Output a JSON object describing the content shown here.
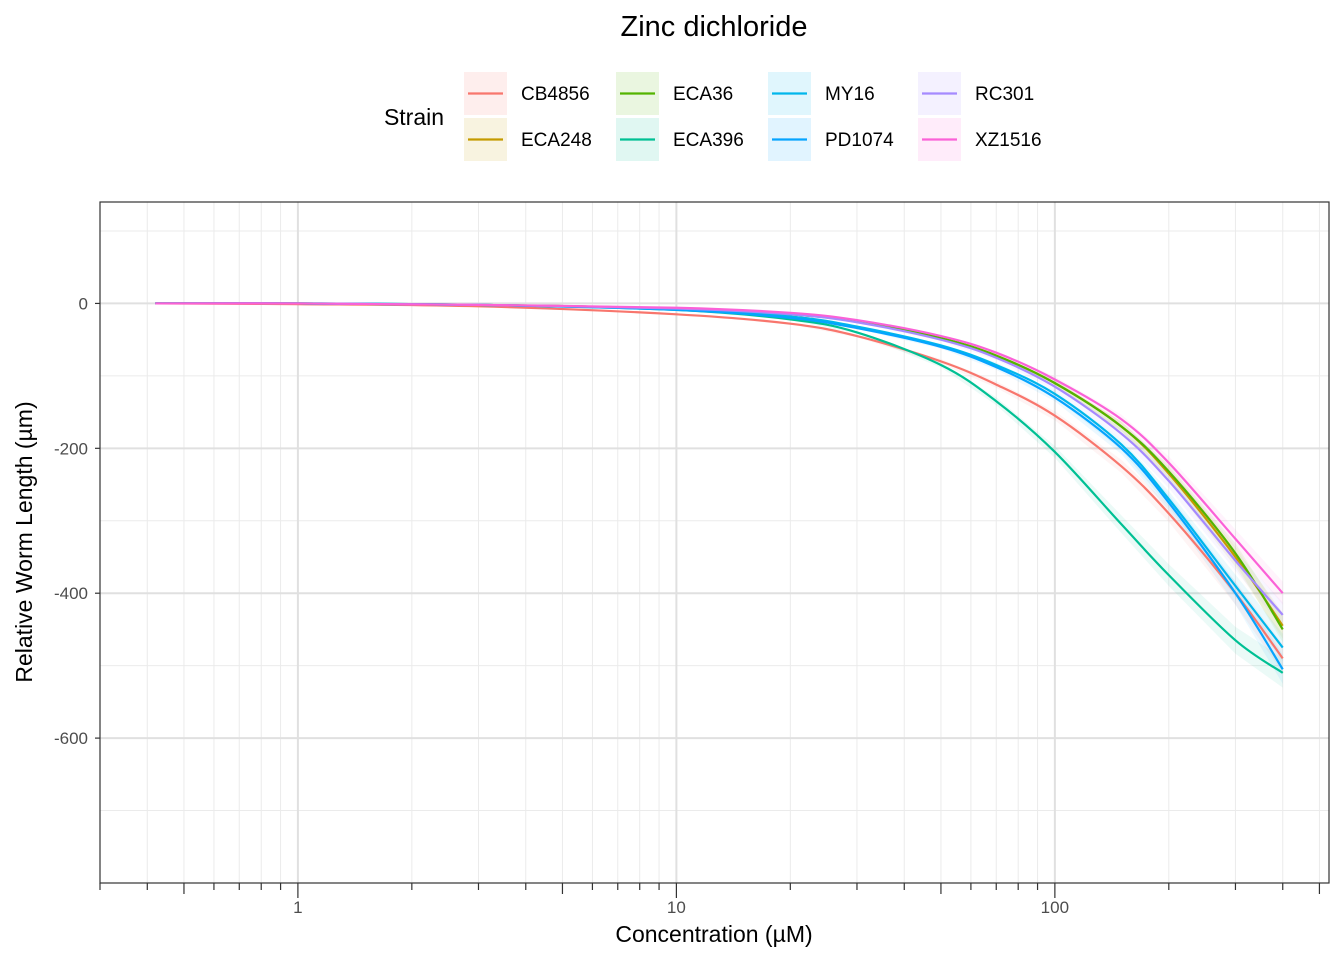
{
  "chart_data": {
    "type": "line",
    "title": "Zinc dichloride",
    "xlabel": "Concentration (µM)",
    "ylabel": "Relative Worm Length (µm)",
    "x_scale": "log10",
    "xlim": [
      0.3,
      530
    ],
    "ylim": [
      -800,
      140
    ],
    "x_ticks": [
      {
        "value": 1,
        "label": "1"
      },
      {
        "value": 10,
        "label": "10"
      },
      {
        "value": 100,
        "label": "100"
      }
    ],
    "y_ticks": [
      {
        "value": 0,
        "label": "0"
      },
      {
        "value": -200,
        "label": "-200"
      },
      {
        "value": -400,
        "label": "-400"
      },
      {
        "value": -600,
        "label": "-600"
      }
    ],
    "grid": true,
    "legend": {
      "title": "Strain",
      "position": "top"
    },
    "x": [
      0.42,
      1,
      3,
      10,
      20,
      30,
      50,
      70,
      100,
      150,
      200,
      300,
      400
    ],
    "series": [
      {
        "name": "CB4856",
        "color": "#F8766D",
        "values": [
          0,
          -1,
          -4,
          -15,
          -28,
          -45,
          -80,
          -112,
          -155,
          -225,
          -290,
          -400,
          -490
        ]
      },
      {
        "name": "ECA248",
        "color": "#C49A00",
        "values": [
          0,
          0,
          -2,
          -7,
          -15,
          -25,
          -48,
          -72,
          -110,
          -170,
          -235,
          -350,
          -445
        ]
      },
      {
        "name": "ECA36",
        "color": "#53B400",
        "values": [
          0,
          0,
          -2,
          -7,
          -15,
          -25,
          -48,
          -72,
          -110,
          -170,
          -232,
          -345,
          -450
        ]
      },
      {
        "name": "ECA396",
        "color": "#00C094",
        "values": [
          0,
          0,
          -2,
          -9,
          -22,
          -40,
          -85,
          -135,
          -205,
          -305,
          -375,
          -465,
          -510
        ]
      },
      {
        "name": "MY16",
        "color": "#00B6EB",
        "values": [
          0,
          0,
          -2,
          -8,
          -18,
          -32,
          -58,
          -85,
          -125,
          -195,
          -270,
          -390,
          -475
        ]
      },
      {
        "name": "PD1074",
        "color": "#06A4FF",
        "values": [
          0,
          0,
          -2,
          -9,
          -20,
          -34,
          -60,
          -88,
          -130,
          -200,
          -275,
          -400,
          -505
        ]
      },
      {
        "name": "RC301",
        "color": "#A58AFF",
        "values": [
          0,
          0,
          -2,
          -7,
          -15,
          -26,
          -50,
          -75,
          -115,
          -180,
          -245,
          -355,
          -430
        ]
      },
      {
        "name": "XZ1516",
        "color": "#FB61D7",
        "values": [
          0,
          0,
          -2,
          -6,
          -13,
          -23,
          -45,
          -68,
          -105,
          -160,
          -220,
          -325,
          -400
        ]
      }
    ]
  }
}
